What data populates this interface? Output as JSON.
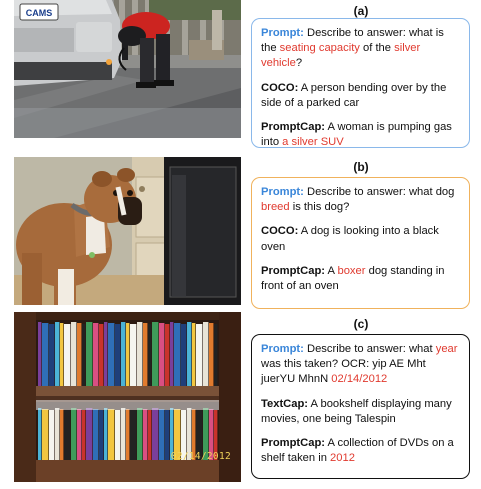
{
  "panels": [
    {
      "label": "(a)",
      "border_color": "#8ab8ea",
      "prompt": {
        "key": "Prompt:",
        "t1": " Describe to answer: what is the ",
        "r1": "seating capacity",
        "t2": " of the ",
        "r2": "silver vehicle",
        "t3": "?"
      },
      "caption": {
        "key": "COCO:",
        "t1": " A person bending over by the side of a parked car"
      },
      "promptcap": {
        "key": "PromptCap:",
        "t1": " A woman is pumping gas into ",
        "r1": "a silver SUV"
      },
      "image": {
        "plate_text": "CAMS"
      }
    },
    {
      "label": "(b)",
      "border_color": "#f0b25c",
      "prompt": {
        "key": "Prompt:",
        "t1": " Describe to answer: what dog ",
        "r1": "breed",
        "t2": " is this dog?"
      },
      "caption": {
        "key": "COCO:",
        "t1": " A dog is looking into a black oven"
      },
      "promptcap": {
        "key": "PromptCap:",
        "t1": " A ",
        "r1": "boxer",
        "t2": " dog standing in front of an oven"
      }
    },
    {
      "label": "(c)",
      "border_color": "#111111",
      "prompt": {
        "key": "Prompt:",
        "t1": " Describe to answer: what ",
        "r1": "year",
        "t2": " was this taken? OCR: yip AE Mht juerYU MhnN ",
        "r2": "02/14/2012"
      },
      "caption": {
        "key": "TextCap:",
        "t1": " A bookshelf displaying many movies, one being Talespin"
      },
      "promptcap": {
        "key": "PromptCap:",
        "t1": " A collection of DVDs on a shelf taken in ",
        "r1": "2012"
      },
      "image": {
        "date_stamp": "02/14/2012"
      }
    }
  ]
}
